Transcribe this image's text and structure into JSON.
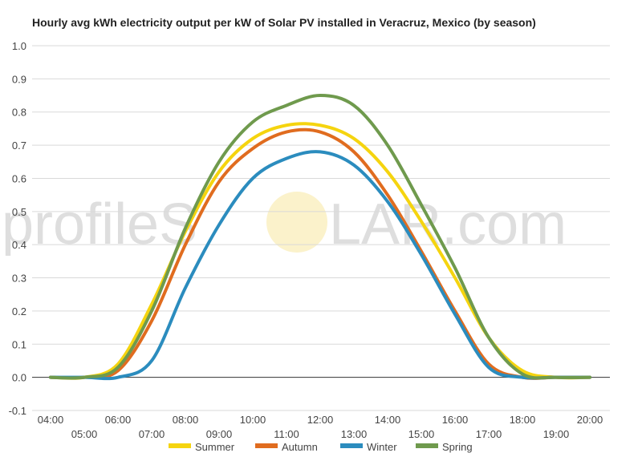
{
  "watermark": {
    "text_before": "profileS",
    "text_after": "LAR.com",
    "color": "#c8c8c8",
    "sun_color": "#f7e7a1"
  },
  "chart_data": {
    "type": "line",
    "title": "Hourly avg kWh electricity output per kW of Solar PV installed in Veracruz, Mexico (by season)",
    "xlabel": "",
    "ylabel": "",
    "x": [
      "04:00",
      "05:00",
      "06:00",
      "07:00",
      "08:00",
      "09:00",
      "10:00",
      "11:00",
      "12:00",
      "13:00",
      "14:00",
      "15:00",
      "16:00",
      "17:00",
      "18:00",
      "19:00",
      "20:00"
    ],
    "ylim": [
      -0.1,
      1.0
    ],
    "yticks": [
      "-0.1",
      "0.0",
      "0.1",
      "0.2",
      "0.3",
      "0.4",
      "0.5",
      "0.6",
      "0.7",
      "0.8",
      "0.9",
      "1.0"
    ],
    "grid": true,
    "legend_position": "bottom",
    "series": [
      {
        "name": "Summer",
        "color": "#f5d40f",
        "values": [
          0.0,
          0.0,
          0.04,
          0.22,
          0.44,
          0.62,
          0.72,
          0.76,
          0.76,
          0.72,
          0.62,
          0.47,
          0.3,
          0.12,
          0.02,
          0.0,
          0.0
        ]
      },
      {
        "name": "Autumn",
        "color": "#e06c1f",
        "values": [
          0.0,
          0.0,
          0.02,
          0.17,
          0.4,
          0.59,
          0.69,
          0.74,
          0.74,
          0.68,
          0.55,
          0.38,
          0.2,
          0.04,
          0.0,
          0.0,
          0.0
        ]
      },
      {
        "name": "Winter",
        "color": "#2b8cbe",
        "values": [
          0.0,
          0.0,
          0.0,
          0.05,
          0.27,
          0.46,
          0.6,
          0.66,
          0.68,
          0.64,
          0.53,
          0.37,
          0.19,
          0.03,
          0.0,
          0.0,
          0.0
        ]
      },
      {
        "name": "Spring",
        "color": "#6f9a4d",
        "values": [
          0.0,
          0.0,
          0.03,
          0.2,
          0.45,
          0.65,
          0.77,
          0.82,
          0.85,
          0.82,
          0.7,
          0.52,
          0.33,
          0.12,
          0.01,
          0.0,
          0.0
        ]
      }
    ]
  }
}
